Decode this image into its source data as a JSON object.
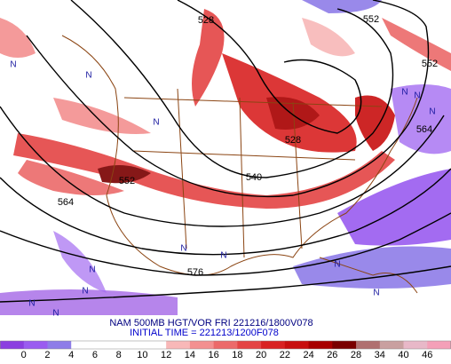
{
  "map": {
    "contour_labels": [
      "528",
      "552",
      "552",
      "564",
      "552",
      "540",
      "528",
      "564",
      "576"
    ],
    "vorticity_markers": [
      "N",
      "N",
      "N",
      "N",
      "N",
      "N",
      "N",
      "N",
      "N",
      "N",
      "N",
      "N",
      "N",
      "N"
    ],
    "title": "NAM 500MB HGT/VOR FRI 221216/1800V078",
    "subtitle": "INITIAL TIME = 221213/1200F078"
  },
  "colorbar": {
    "labels": [
      "0",
      "2",
      "4",
      "6",
      "8",
      "10",
      "12",
      "14",
      "16",
      "18",
      "20",
      "22",
      "24",
      "26",
      "28",
      "34",
      "40",
      "46"
    ],
    "colors": [
      "#8b3fe0",
      "#9a5cf0",
      "#8e7de8",
      "#ffffff",
      "#ffffff",
      "#ffffff",
      "#ffffff",
      "#f8b8b8",
      "#f39090",
      "#ec6a6a",
      "#e44444",
      "#d92222",
      "#c80f0f",
      "#a80000",
      "#7a0000",
      "#b07070",
      "#c9a0a0",
      "#e8b8c8",
      "#f4a0b8"
    ]
  }
}
